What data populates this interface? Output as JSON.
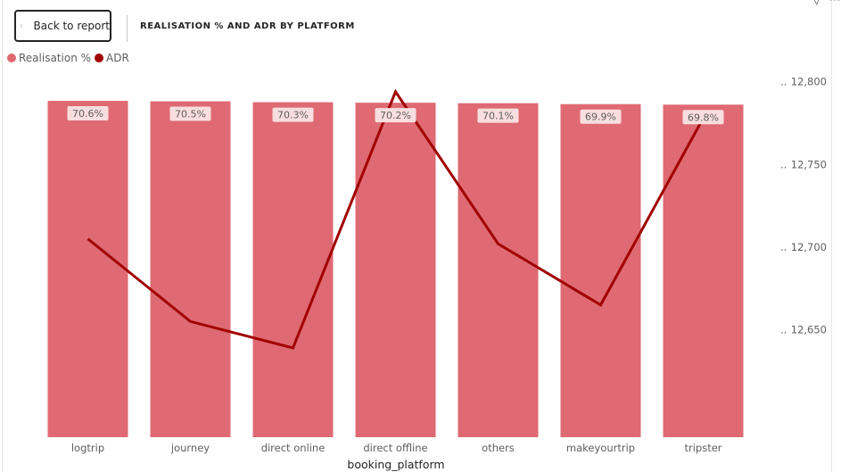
{
  "header": {
    "back_label": "Back to report",
    "title": "REALISATION % AND ADR BY PLATFORM"
  },
  "legend": [
    {
      "name": "Realisation %",
      "color": "#df6a73"
    },
    {
      "name": "ADR",
      "color": "#a10000"
    }
  ],
  "chart_data": {
    "type": "bar",
    "title": "REALISATION % AND ADR BY PLATFORM",
    "xlabel": "booking_platform",
    "categories": [
      "logtrip",
      "journey",
      "direct online",
      "direct offline",
      "others",
      "makeyourtrip",
      "tripster"
    ],
    "series": [
      {
        "name": "Realisation %",
        "type": "bar",
        "values": [
          70.6,
          70.5,
          70.3,
          70.2,
          70.1,
          69.9,
          69.8
        ],
        "labels": [
          "70.6%",
          "70.5%",
          "70.3%",
          "70.2%",
          "70.1%",
          "69.9%",
          "69.8%"
        ],
        "color": "#df6a73"
      },
      {
        "name": "ADR",
        "type": "line",
        "axis": "right",
        "values": [
          12705,
          12655,
          12639,
          12794,
          12702,
          12665,
          12778
        ],
        "color": "#a10000"
      }
    ],
    "y_right": {
      "ticks": [
        12650,
        12700,
        12750,
        12800
      ],
      "tick_labels": [
        "12,650",
        "12,700",
        "12,750",
        "12,800"
      ],
      "range": [
        12585,
        12805
      ]
    },
    "legend_position": "top-left",
    "grid": false
  }
}
